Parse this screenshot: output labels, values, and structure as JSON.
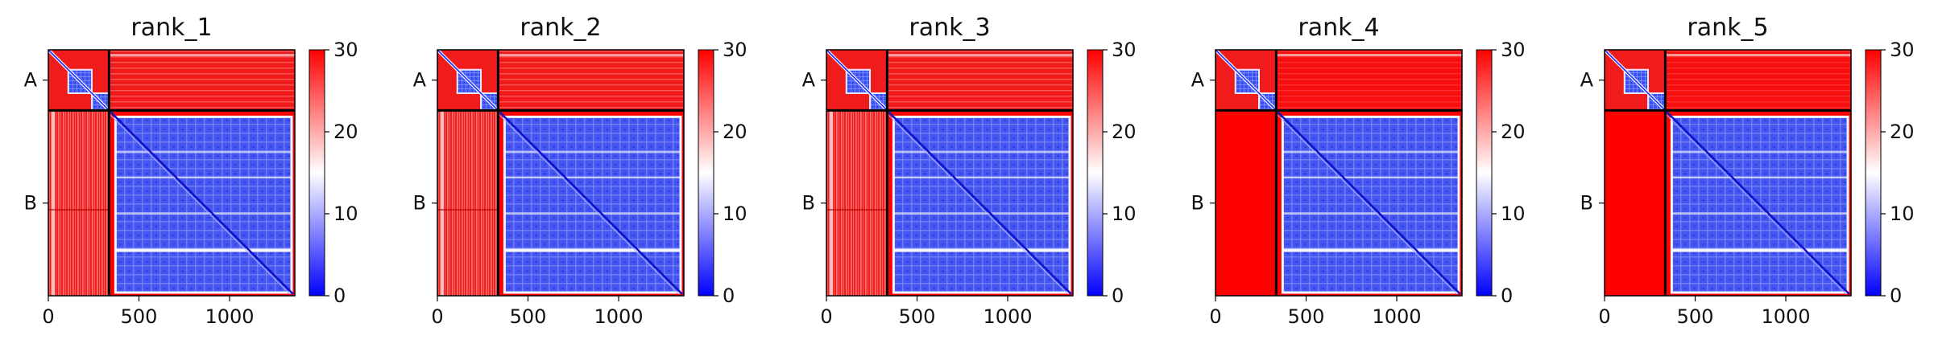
{
  "chart_data": {
    "type": "heatmap",
    "panels": [
      {
        "title": "rank_1",
        "variant": "streaky"
      },
      {
        "title": "rank_2",
        "variant": "streaky"
      },
      {
        "title": "rank_3",
        "variant": "streaky"
      },
      {
        "title": "rank_4",
        "variant": "smooth"
      },
      {
        "title": "rank_5",
        "variant": "smooth"
      }
    ],
    "chains": [
      {
        "label": "A",
        "start": 0,
        "end": 335
      },
      {
        "label": "B",
        "start": 335,
        "end": 1360
      }
    ],
    "x_range": [
      0,
      1360
    ],
    "x_ticks": [
      0,
      500,
      1000
    ],
    "colorbar": {
      "min": 0,
      "max": 30,
      "ticks": [
        0,
        10,
        20,
        30
      ]
    },
    "colors": {
      "low": "#0000ff",
      "mid": "#ffffff",
      "high": "#ff0000",
      "divider": "#000000"
    }
  }
}
